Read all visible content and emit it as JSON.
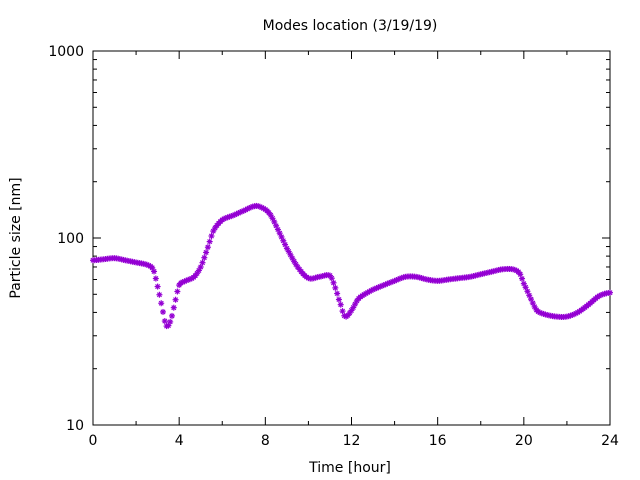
{
  "chart_data": {
    "type": "scatter",
    "title": "Modes location (3/19/19)",
    "xlabel": "Time [hour]",
    "ylabel": "Particle size [nm]",
    "xlim": [
      0,
      24
    ],
    "ylim": [
      10,
      1000
    ],
    "yscale": "log",
    "grid": false,
    "legend": "none",
    "x_ticks": [
      "0",
      "4",
      "8",
      "12",
      "16",
      "20",
      "24"
    ],
    "y_ticks": [
      "10",
      "100",
      "1000"
    ],
    "color": "#9400d3",
    "marker": "star",
    "series": [
      {
        "x": [
          0,
          0.5,
          1,
          1.5,
          2,
          2.5,
          2.8,
          3.0,
          3.2,
          3.4,
          3.6,
          3.8,
          4.0,
          4.3,
          4.7,
          5.0,
          5.3,
          5.6,
          6.0,
          6.5,
          7.0,
          7.5,
          7.8,
          8.2,
          8.6,
          9.0,
          9.5,
          10.0,
          10.5,
          11.0,
          11.2,
          11.5,
          11.7,
          12.0,
          12.3,
          12.6,
          13.0,
          13.5,
          14.0,
          14.5,
          15.0,
          15.5,
          16.0,
          16.5,
          17.0,
          17.5,
          18.0,
          18.5,
          19.0,
          19.5,
          19.8,
          20.0,
          20.3,
          20.6,
          21.0,
          21.5,
          22.0,
          22.5,
          23.0,
          23.5,
          24.0
        ],
        "y": [
          76,
          77,
          78,
          76,
          74,
          72,
          68,
          55,
          43,
          34,
          36,
          45,
          56,
          59,
          62,
          70,
          87,
          110,
          125,
          132,
          140,
          148,
          146,
          135,
          110,
          88,
          70,
          61,
          62,
          63,
          56,
          44,
          38,
          41,
          47,
          50,
          53,
          56,
          59,
          62,
          62,
          60,
          59,
          60,
          61,
          62,
          64,
          66,
          68,
          68,
          65,
          57,
          48,
          41,
          39,
          38,
          38,
          40,
          44,
          49,
          51
        ]
      }
    ]
  }
}
